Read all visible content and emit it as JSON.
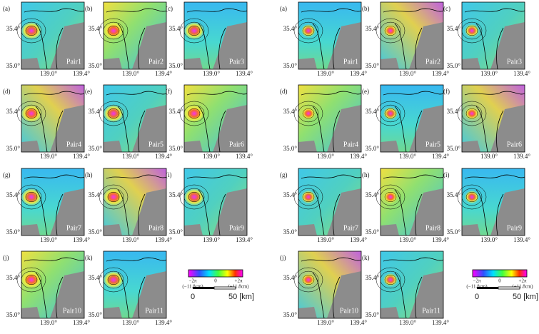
{
  "figures": [
    {
      "panels": [
        {
          "letter": "(a)",
          "pair": "Pair1"
        },
        {
          "letter": "(b)",
          "pair": "Pair2"
        },
        {
          "letter": "(c)",
          "pair": "Pair3"
        },
        {
          "letter": "(d)",
          "pair": "Pair4"
        },
        {
          "letter": "(e)",
          "pair": "Pair5"
        },
        {
          "letter": "(f)",
          "pair": "Pair6"
        },
        {
          "letter": "(g)",
          "pair": "Pair7"
        },
        {
          "letter": "(h)",
          "pair": "Pair8"
        },
        {
          "letter": "(i)",
          "pair": "Pair9"
        },
        {
          "letter": "(j)",
          "pair": "Pair10"
        },
        {
          "letter": "(k)",
          "pair": "Pair11"
        }
      ],
      "lat_ticks": [
        "35.4°",
        "35.0°"
      ],
      "lon_ticks": [
        "139.0°",
        "139.4°"
      ],
      "colorbar": {
        "min_label": "−2π",
        "min_sub": "(−11.8cm)",
        "mid_label": "0",
        "max_label": "+2π",
        "max_sub": "(+11.8cm)"
      },
      "scale": {
        "start": "0",
        "end": "50 [km]"
      }
    },
    {
      "panels": [
        {
          "letter": "(a)",
          "pair": "Pair1"
        },
        {
          "letter": "(b)",
          "pair": "Pair2"
        },
        {
          "letter": "(c)",
          "pair": "Pair3"
        },
        {
          "letter": "(d)",
          "pair": "Pair4"
        },
        {
          "letter": "(e)",
          "pair": "Pair5"
        },
        {
          "letter": "(f)",
          "pair": "Pair6"
        },
        {
          "letter": "(g)",
          "pair": "Pair7"
        },
        {
          "letter": "(h)",
          "pair": "Pair8"
        },
        {
          "letter": "(i)",
          "pair": "Pair9"
        },
        {
          "letter": "(j)",
          "pair": "Pair10"
        },
        {
          "letter": "(k)",
          "pair": "Pair11"
        }
      ],
      "lat_ticks": [
        "35.4°",
        "35.0°"
      ],
      "lon_ticks": [
        "139.0°",
        "139.4°"
      ],
      "colorbar": {
        "min_label": "−2π",
        "min_sub": "(−11.8cm)",
        "mid_label": "0",
        "max_label": "+2π",
        "max_sub": "(+11.8cm)"
      },
      "scale": {
        "start": "0",
        "end": "50 [km]"
      }
    }
  ]
}
